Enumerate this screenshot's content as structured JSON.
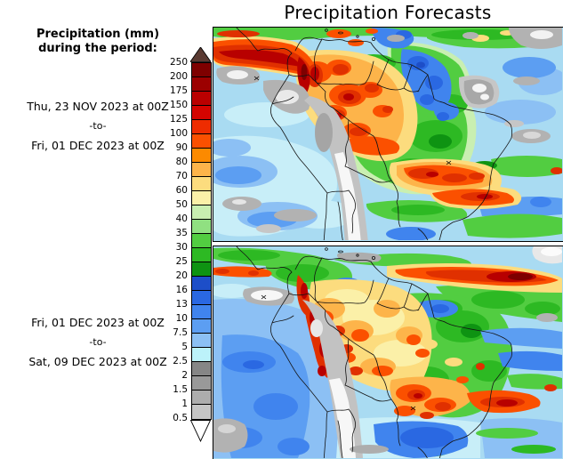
{
  "title": "Precipitation Forecasts",
  "left_panel": {
    "header_line1": "Precipitation (mm)",
    "header_line2": "during the period:",
    "period1": {
      "start": "Thu, 23 NOV 2023 at 00Z",
      "to": "-to-",
      "end": "Fri, 01 DEC 2023 at 00Z"
    },
    "period2": {
      "start": "Fri, 01 DEC 2023 at 00Z",
      "to": "-to-",
      "end": "Sat, 09 DEC 2023 at 00Z"
    }
  },
  "colorbar": {
    "ticks": [
      "250",
      "200",
      "175",
      "150",
      "125",
      "100",
      "90",
      "80",
      "70",
      "60",
      "50",
      "40",
      "35",
      "30",
      "25",
      "20",
      "16",
      "13",
      "10",
      "7.5",
      "5",
      "2.5",
      "2",
      "1.5",
      "1",
      "0.5"
    ],
    "segment_colors": [
      "#7E0000",
      "#9C0000",
      "#BA0000",
      "#D40400",
      "#EE2C00",
      "#FB5000",
      "#FC8A00",
      "#FDB44A",
      "#FCDC7E",
      "#FBF0A8",
      "#C9EFB1",
      "#90E081",
      "#52CD41",
      "#2DB923",
      "#0E9312",
      "#1D4EC8",
      "#2A68E2",
      "#4084EE",
      "#5C9EF2",
      "#8CC0F4",
      "#BCF2FA",
      "#868686",
      "#999999",
      "#ADADAD",
      "#C5C5C5"
    ],
    "over_arrow_color": "#5A3A32",
    "under_arrow_color": "#FFFFFF"
  }
}
